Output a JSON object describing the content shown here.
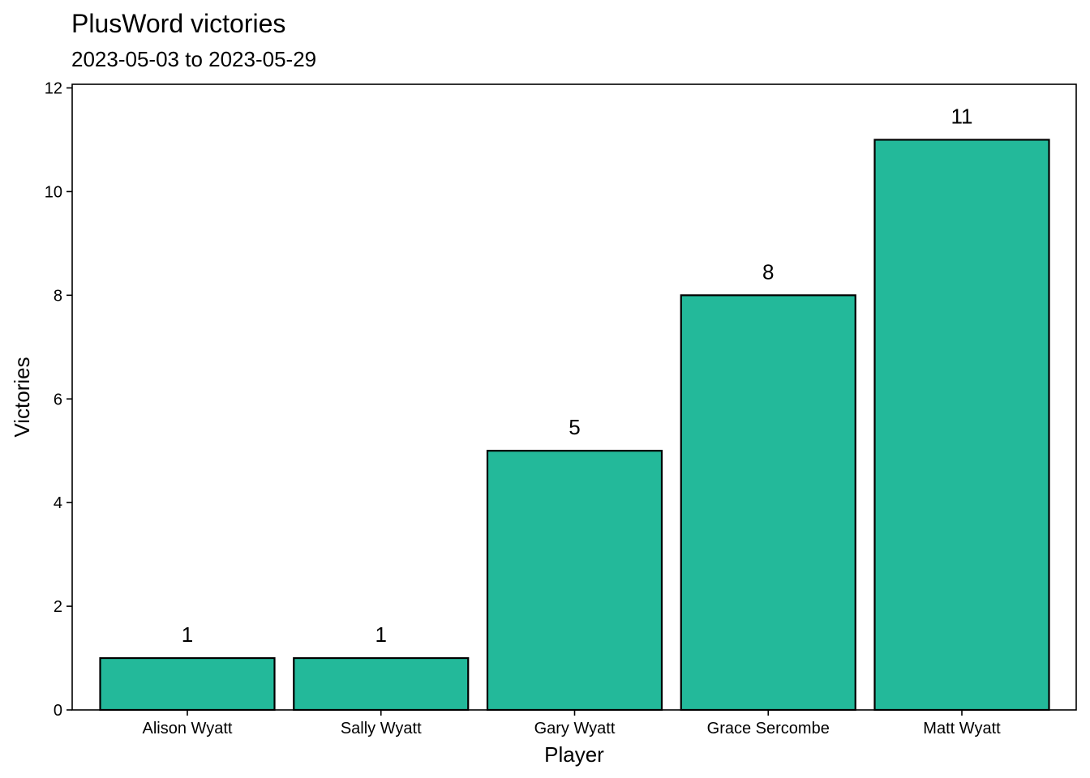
{
  "chart_data": {
    "type": "bar",
    "title": "PlusWord victories",
    "subtitle": "2023-05-03 to 2023-05-29",
    "xlabel": "Player",
    "ylabel": "Victories",
    "categories": [
      "Alison Wyatt",
      "Sally Wyatt",
      "Gary Wyatt",
      "Grace Sercombe",
      "Matt Wyatt"
    ],
    "values": [
      1,
      1,
      5,
      8,
      11
    ],
    "data_labels": [
      "1",
      "1",
      "5",
      "8",
      "11"
    ],
    "ylim": [
      0,
      12
    ],
    "yticks": [
      0,
      2,
      4,
      6,
      8,
      10,
      12
    ],
    "ytick_labels": [
      "0",
      "2",
      "4",
      "6",
      "8",
      "10",
      "12"
    ],
    "grid": false,
    "legend": "none",
    "bar_color": "#23b99a",
    "bar_edge_color": "#000000"
  }
}
